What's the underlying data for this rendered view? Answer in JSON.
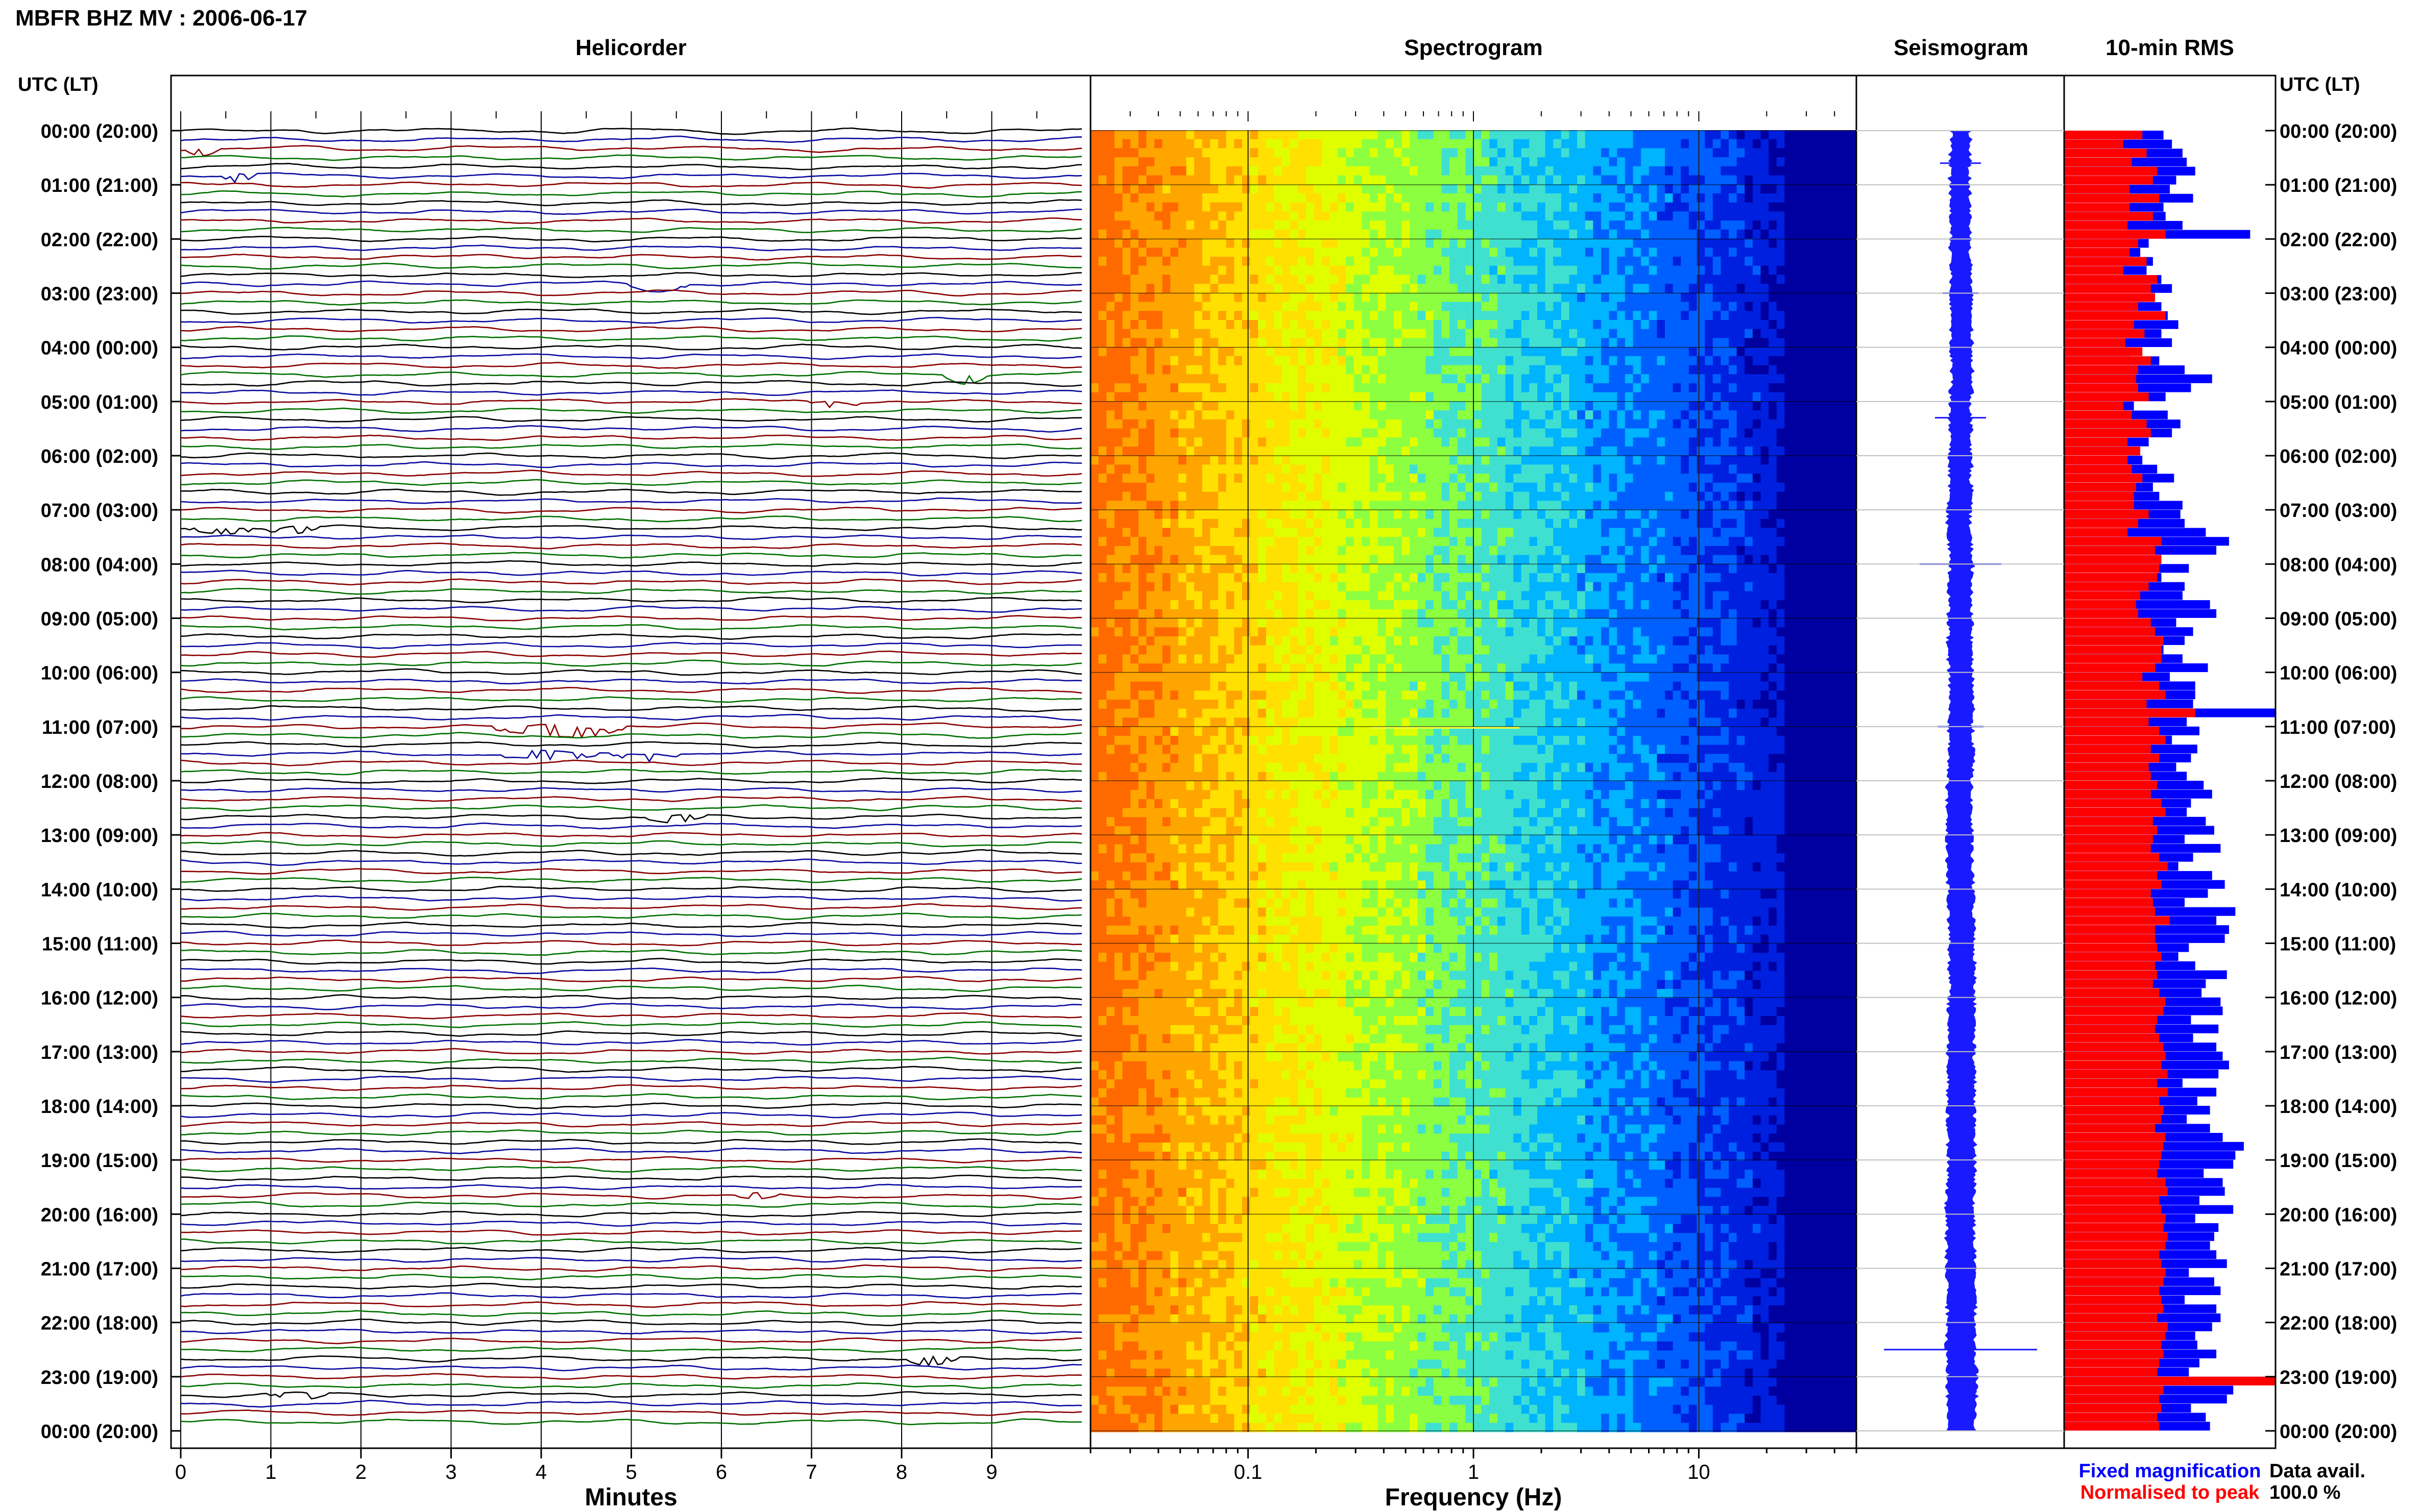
{
  "header": {
    "title": "MBFR BHZ MV : 2006-06-17",
    "panel_titles": {
      "helicorder": "Helicorder",
      "spectrogram": "Spectrogram",
      "seismogram": "Seismogram",
      "rms": "10-min RMS"
    },
    "time_axis_label_left": "UTC (LT)",
    "time_axis_label_right": "UTC (LT)"
  },
  "time_ticks": [
    "00:00 (20:00)",
    "01:00 (21:00)",
    "02:00 (22:00)",
    "03:00 (23:00)",
    "04:00 (00:00)",
    "05:00 (01:00)",
    "06:00 (02:00)",
    "07:00 (03:00)",
    "08:00 (04:00)",
    "09:00 (05:00)",
    "10:00 (06:00)",
    "11:00 (07:00)",
    "12:00 (08:00)",
    "13:00 (09:00)",
    "14:00 (10:00)",
    "15:00 (11:00)",
    "16:00 (12:00)",
    "17:00 (13:00)",
    "18:00 (14:00)",
    "19:00 (15:00)",
    "20:00 (16:00)",
    "21:00 (17:00)",
    "22:00 (18:00)",
    "23:00 (19:00)",
    "00:00 (20:00)"
  ],
  "footer": {
    "fixed_magnification": "Fixed magnification",
    "normalised_to_peak": "Normalised to peak",
    "data_avail_label": "Data avail.",
    "data_avail_value": "100.0 %"
  },
  "colors": {
    "helicorder_lines": [
      "#000000",
      "#0a0aa0",
      "#8b0000",
      "#007000"
    ],
    "rms_fixed": "#0000ff",
    "rms_normalised": "#ff0000",
    "seismogram": "#1a1aff"
  },
  "chart_data": [
    {
      "type": "line",
      "name": "helicorder",
      "title": "Helicorder",
      "xlabel": "Minutes",
      "x_ticks": [
        "0",
        "1",
        "2",
        "3",
        "4",
        "5",
        "6",
        "7",
        "8",
        "9"
      ],
      "xlim": [
        0,
        10
      ],
      "rows": 144,
      "row_minutes": 10
    },
    {
      "type": "heatmap",
      "name": "spectrogram",
      "title": "Spectrogram",
      "xlabel": "Frequency (Hz)",
      "x_scale": "log",
      "x_ticks": [
        "0.1",
        "1",
        "10"
      ],
      "xlim": [
        0.02,
        50
      ],
      "colormap": [
        "#ff6a00",
        "#ffa500",
        "#ffe000",
        "#dfff00",
        "#8cff40",
        "#40e0d0",
        "#00b4ff",
        "#0060ff",
        "#0020e0",
        "#0000a0"
      ]
    },
    {
      "type": "line",
      "name": "seismogram",
      "title": "Seismogram"
    },
    {
      "type": "bar",
      "name": "rms",
      "title": "10-min RMS",
      "xlim": [
        0,
        1
      ],
      "series": [
        {
          "name": "Fixed magnification",
          "values": [
            0.47,
            0.51,
            0.56,
            0.58,
            0.62,
            0.53,
            0.5,
            0.61,
            0.47,
            0.48,
            0.56,
            0.88,
            0.4,
            0.36,
            0.42,
            0.39,
            0.46,
            0.51,
            0.38,
            0.46,
            0.49,
            0.54,
            0.46,
            0.51,
            0.31,
            0.45,
            0.57,
            0.7,
            0.6,
            0.48,
            0.33,
            0.49,
            0.55,
            0.51,
            0.4,
            0.36,
            0.37,
            0.44,
            0.52,
            0.42,
            0.45,
            0.56,
            0.55,
            0.57,
            0.67,
            0.78,
            0.72,
            0.46,
            0.59,
            0.46,
            0.57,
            0.56,
            0.69,
            0.72,
            0.53,
            0.61,
            0.57,
            0.47,
            0.56,
            0.68,
            0.5,
            0.62,
            0.62,
            0.61,
            1.0,
            0.58,
            0.64,
            0.51,
            0.63,
            0.6,
            0.53,
            0.58,
            0.66,
            0.7,
            0.6,
            0.58,
            0.67,
            0.71,
            0.57,
            0.74,
            0.61,
            0.54,
            0.7,
            0.76,
            0.68,
            0.57,
            0.81,
            0.72,
            0.78,
            0.76,
            0.59,
            0.54,
            0.62,
            0.77,
            0.67,
            0.65,
            0.74,
            0.75,
            0.6,
            0.73,
            0.61,
            0.72,
            0.75,
            0.78,
            0.73,
            0.56,
            0.72,
            0.63,
            0.69,
            0.58,
            0.69,
            0.75,
            0.85,
            0.81,
            0.8,
            0.66,
            0.75,
            0.76,
            0.64,
            0.8,
            0.62,
            0.73,
            0.71,
            0.69,
            0.72,
            0.77,
            0.59,
            0.71,
            0.74,
            0.57,
            0.72,
            0.74,
            0.7,
            0.62,
            0.63,
            0.72,
            0.64,
            0.59,
            0.99,
            0.8,
            0.77,
            0.6,
            0.67,
            0.69
          ]
        },
        {
          "name": "Normalised to peak",
          "values": [
            0.37,
            0.28,
            0.39,
            0.32,
            0.44,
            0.42,
            0.31,
            0.45,
            0.31,
            0.42,
            0.3,
            0.48,
            0.35,
            0.31,
            0.39,
            0.28,
            0.44,
            0.41,
            0.43,
            0.35,
            0.48,
            0.33,
            0.38,
            0.29,
            0.37,
            0.41,
            0.35,
            0.34,
            0.35,
            0.4,
            0.28,
            0.32,
            0.39,
            0.41,
            0.3,
            0.36,
            0.3,
            0.32,
            0.37,
            0.34,
            0.33,
            0.33,
            0.4,
            0.35,
            0.3,
            0.46,
            0.43,
            0.46,
            0.45,
            0.44,
            0.4,
            0.36,
            0.34,
            0.35,
            0.41,
            0.43,
            0.47,
            0.46,
            0.46,
            0.43,
            0.37,
            0.45,
            0.48,
            0.39,
            0.62,
            0.4,
            0.45,
            0.48,
            0.41,
            0.45,
            0.4,
            0.41,
            0.44,
            0.41,
            0.46,
            0.48,
            0.42,
            0.44,
            0.42,
            0.41,
            0.45,
            0.49,
            0.44,
            0.46,
            0.41,
            0.42,
            0.43,
            0.5,
            0.43,
            0.43,
            0.44,
            0.46,
            0.43,
            0.44,
            0.42,
            0.45,
            0.48,
            0.47,
            0.44,
            0.43,
            0.45,
            0.47,
            0.48,
            0.46,
            0.49,
            0.44,
            0.49,
            0.45,
            0.47,
            0.46,
            0.43,
            0.48,
            0.47,
            0.46,
            0.45,
            0.44,
            0.48,
            0.49,
            0.45,
            0.46,
            0.48,
            0.47,
            0.49,
            0.48,
            0.45,
            0.46,
            0.48,
            0.47,
            0.45,
            0.46,
            0.47,
            0.44,
            0.49,
            0.48,
            0.46,
            0.47,
            0.45,
            0.44,
            1.0,
            0.47,
            0.45,
            0.46,
            0.44,
            0.45
          ]
        }
      ]
    }
  ]
}
